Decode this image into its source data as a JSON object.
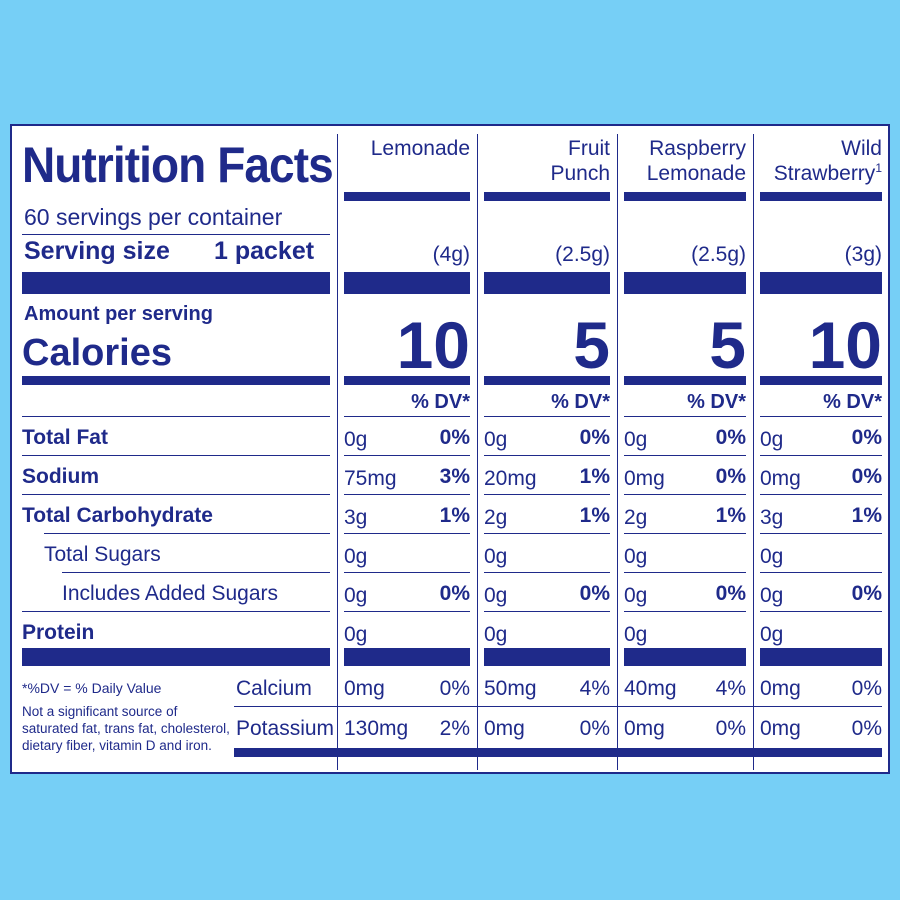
{
  "label": {
    "title": "Nutrition Facts",
    "servings": "60 servings per container",
    "serving_size_label": "Serving size",
    "serving_size_value": "1 packet",
    "amount_per_serving": "Amount per serving",
    "calories_label": "Calories",
    "dv_header": "% DV*"
  },
  "columns": [
    {
      "line1": "Lemonade",
      "line2": "",
      "sup": "",
      "serving": "(4g)",
      "calories": "10"
    },
    {
      "line1": "Fruit",
      "line2": "Punch",
      "sup": "",
      "serving": "(2.5g)",
      "calories": "5"
    },
    {
      "line1": "Raspberry",
      "line2": "Lemonade",
      "sup": "",
      "serving": "(2.5g)",
      "calories": "5"
    },
    {
      "line1": "Wild",
      "line2": "Strawberry",
      "sup": "1",
      "serving": "(3g)",
      "calories": "10"
    }
  ],
  "nutrients": [
    {
      "name": "Total Fat",
      "bold": true,
      "indent": 0,
      "values": [
        [
          "0g",
          "0%"
        ],
        [
          "0g",
          "0%"
        ],
        [
          "0g",
          "0%"
        ],
        [
          "0g",
          "0%"
        ]
      ]
    },
    {
      "name": "Sodium",
      "bold": true,
      "indent": 0,
      "values": [
        [
          "75mg",
          "3%"
        ],
        [
          "20mg",
          "1%"
        ],
        [
          "0mg",
          "0%"
        ],
        [
          "0mg",
          "0%"
        ]
      ]
    },
    {
      "name": "Total Carbohydrate",
      "bold": true,
      "indent": 0,
      "values": [
        [
          "3g",
          "1%"
        ],
        [
          "2g",
          "1%"
        ],
        [
          "2g",
          "1%"
        ],
        [
          "3g",
          "1%"
        ]
      ]
    },
    {
      "name": "Total Sugars",
      "bold": false,
      "indent": 1,
      "values": [
        [
          "0g",
          ""
        ],
        [
          "0g",
          ""
        ],
        [
          "0g",
          ""
        ],
        [
          "0g",
          ""
        ]
      ]
    },
    {
      "name": "Includes Added Sugars",
      "bold": false,
      "indent": 2,
      "values": [
        [
          "0g",
          "0%"
        ],
        [
          "0g",
          "0%"
        ],
        [
          "0g",
          "0%"
        ],
        [
          "0g",
          "0%"
        ]
      ]
    },
    {
      "name": "Protein",
      "bold": true,
      "indent": 0,
      "values": [
        [
          "0g",
          ""
        ],
        [
          "0g",
          ""
        ],
        [
          "0g",
          ""
        ],
        [
          "0g",
          ""
        ]
      ]
    }
  ],
  "minerals": [
    {
      "name": "Calcium",
      "values": [
        [
          "0mg",
          "0%"
        ],
        [
          "50mg",
          "4%"
        ],
        [
          "40mg",
          "4%"
        ],
        [
          "0mg",
          "0%"
        ]
      ]
    },
    {
      "name": "Potassium",
      "values": [
        [
          "130mg",
          "2%"
        ],
        [
          "0mg",
          "0%"
        ],
        [
          "0mg",
          "0%"
        ],
        [
          "0mg",
          "0%"
        ]
      ]
    }
  ],
  "footnote": {
    "line1": "*%DV = % Daily Value",
    "line2": "Not a significant source of saturated fat, trans fat, cholesterol, dietary fiber, vitamin D and iron."
  },
  "colors": {
    "ink": "#1f2a8a",
    "background": "#76cff6",
    "panel": "#ffffff"
  }
}
